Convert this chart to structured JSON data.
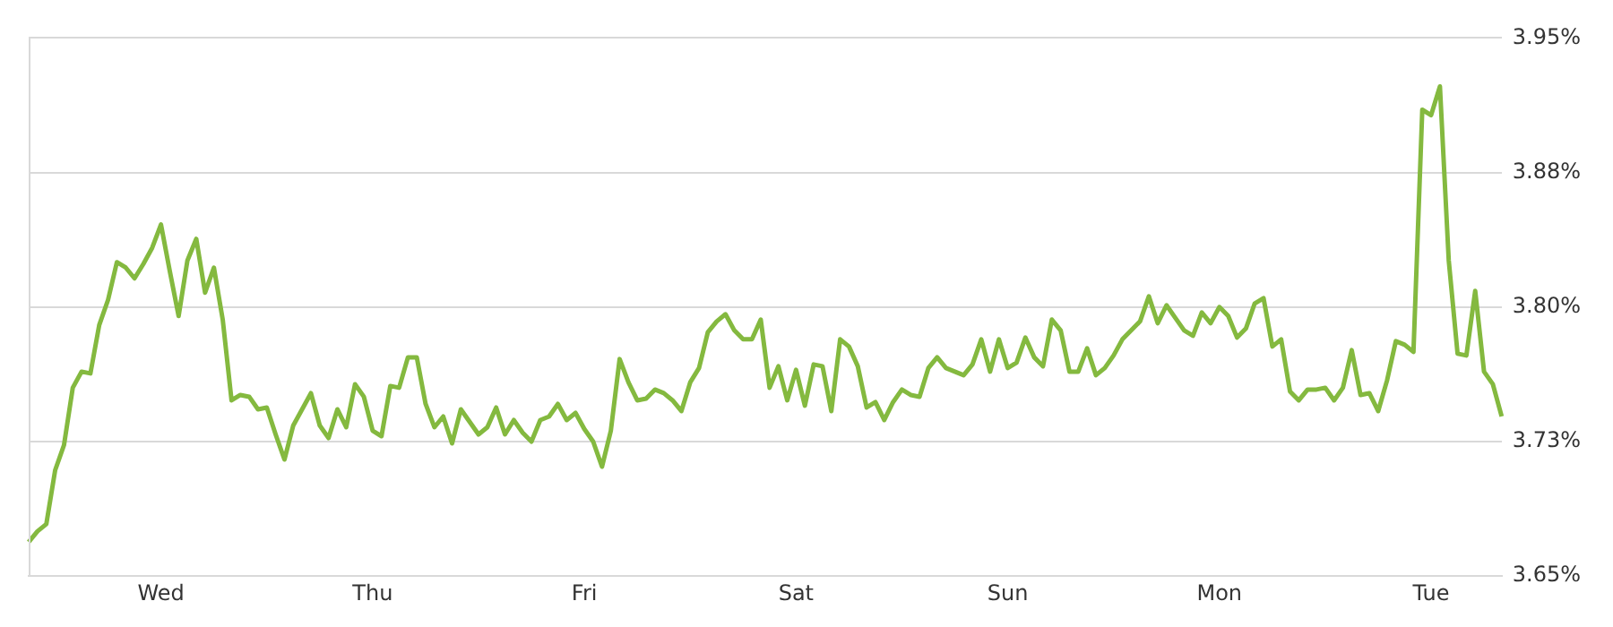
{
  "chart_data": {
    "type": "line",
    "categories": [
      null,
      null,
      null,
      null,
      null,
      null,
      null,
      null,
      null,
      null,
      null,
      null,
      null,
      null,
      null,
      "Wed",
      null,
      null,
      null,
      null,
      null,
      null,
      null,
      null,
      null,
      null,
      null,
      null,
      null,
      null,
      null,
      null,
      null,
      null,
      null,
      null,
      null,
      null,
      null,
      "Thu",
      null,
      null,
      null,
      null,
      null,
      null,
      null,
      null,
      null,
      null,
      null,
      null,
      null,
      null,
      null,
      null,
      null,
      null,
      null,
      null,
      null,
      null,
      null,
      "Fri",
      null,
      null,
      null,
      null,
      null,
      null,
      null,
      null,
      null,
      null,
      null,
      null,
      null,
      null,
      null,
      null,
      null,
      null,
      null,
      null,
      null,
      null,
      null,
      "Sat",
      null,
      null,
      null,
      null,
      null,
      null,
      null,
      null,
      null,
      null,
      null,
      null,
      null,
      null,
      null,
      null,
      null,
      null,
      null,
      null,
      null,
      null,
      null,
      "Sun",
      null,
      null,
      null,
      null,
      null,
      null,
      null,
      null,
      null,
      null,
      null,
      null,
      null,
      null,
      null,
      null,
      null,
      null,
      null,
      null,
      null,
      null,
      null,
      "Mon",
      null,
      null,
      null,
      null,
      null,
      null,
      null,
      null,
      null,
      null,
      null,
      null,
      null,
      null,
      null,
      null,
      null,
      null,
      null,
      null,
      null,
      null,
      null,
      "Tue",
      null,
      null,
      null,
      null,
      null,
      null,
      null,
      null
    ],
    "ylim": [
      3.65,
      3.95
    ],
    "yticks": [
      {
        "value": 3.65,
        "label": "3.65%"
      },
      {
        "value": 3.725,
        "label": "3.73%"
      },
      {
        "value": 3.8,
        "label": "3.80%"
      },
      {
        "value": 3.875,
        "label": "3.88%"
      },
      {
        "value": 3.95,
        "label": "3.95%"
      }
    ],
    "grid": "y",
    "legend": false,
    "marker": "none",
    "line_style": "solid",
    "series": [
      {
        "color": "#84b93f",
        "values": [
          3.669,
          3.675,
          3.679,
          3.709,
          3.723,
          3.755,
          3.764,
          3.763,
          3.79,
          3.804,
          3.825,
          3.822,
          3.816,
          3.824,
          3.833,
          3.846,
          3.82,
          3.795,
          3.826,
          3.838,
          3.808,
          3.822,
          3.793,
          3.748,
          3.751,
          3.75,
          3.743,
          3.744,
          3.729,
          3.715,
          3.734,
          3.743,
          3.752,
          3.734,
          3.727,
          3.743,
          3.733,
          3.757,
          3.75,
          3.731,
          3.728,
          3.756,
          3.755,
          3.772,
          3.772,
          3.746,
          3.733,
          3.739,
          3.724,
          3.743,
          3.736,
          3.729,
          3.733,
          3.744,
          3.729,
          3.737,
          3.73,
          3.725,
          3.737,
          3.739,
          3.746,
          3.737,
          3.741,
          3.732,
          3.725,
          3.711,
          3.731,
          3.771,
          3.758,
          3.748,
          3.749,
          3.754,
          3.752,
          3.748,
          3.742,
          3.758,
          3.766,
          3.786,
          3.792,
          3.796,
          3.787,
          3.782,
          3.782,
          3.793,
          3.755,
          3.767,
          3.748,
          3.765,
          3.745,
          3.768,
          3.767,
          3.742,
          3.782,
          3.778,
          3.767,
          3.744,
          3.747,
          3.737,
          3.747,
          3.754,
          3.751,
          3.75,
          3.766,
          3.772,
          3.766,
          3.764,
          3.762,
          3.768,
          3.782,
          3.764,
          3.782,
          3.766,
          3.769,
          3.783,
          3.772,
          3.767,
          3.793,
          3.787,
          3.764,
          3.764,
          3.777,
          3.762,
          3.766,
          3.773,
          3.782,
          3.787,
          3.792,
          3.806,
          3.791,
          3.801,
          3.794,
          3.787,
          3.784,
          3.797,
          3.791,
          3.8,
          3.795,
          3.783,
          3.788,
          3.802,
          3.805,
          3.778,
          3.782,
          3.753,
          3.748,
          3.754,
          3.754,
          3.755,
          3.748,
          3.755,
          3.776,
          3.751,
          3.752,
          3.742,
          3.759,
          3.781,
          3.779,
          3.775,
          3.91,
          3.907,
          3.923,
          3.826,
          3.774,
          3.773,
          3.809,
          3.764,
          3.757,
          3.739
        ]
      }
    ]
  }
}
